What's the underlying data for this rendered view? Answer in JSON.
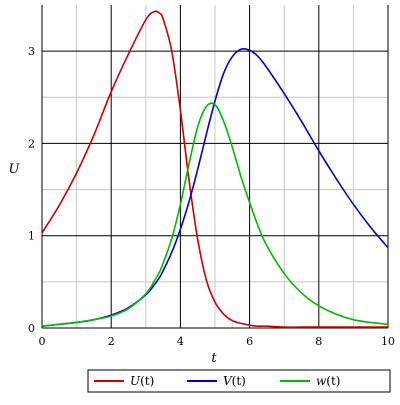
{
  "chart_data": {
    "type": "line",
    "xlabel": "t",
    "ylabel": "U",
    "xlim": [
      0,
      10
    ],
    "ylim": [
      0,
      3.5
    ],
    "grid": true,
    "legend_position": "bottom",
    "xticks": [
      {
        "value": 0,
        "label": "0"
      },
      {
        "value": 2,
        "label": "2"
      },
      {
        "value": 4,
        "label": "4"
      },
      {
        "value": 6,
        "label": "6"
      },
      {
        "value": 8,
        "label": "8"
      },
      {
        "value": 10,
        "label": "10"
      }
    ],
    "yticks": [
      {
        "value": 0,
        "label": "0"
      },
      {
        "value": 1,
        "label": "1"
      },
      {
        "value": 2,
        "label": "2"
      },
      {
        "value": 3,
        "label": "3"
      }
    ],
    "x": [
      0,
      0.5,
      1,
      1.5,
      2,
      2.5,
      3,
      3.25,
      3.4,
      3.5,
      3.75,
      4,
      4.25,
      4.5,
      4.75,
      5,
      5.25,
      5.5,
      5.75,
      6,
      6.25,
      6.5,
      7,
      7.5,
      8,
      8.5,
      9,
      9.5,
      10
    ],
    "series": [
      {
        "name": "U(t)",
        "color": "#cc0000",
        "values": [
          1.03,
          1.33,
          1.68,
          2.09,
          2.56,
          2.97,
          3.34,
          3.43,
          3.41,
          3.35,
          3.0,
          2.36,
          1.6,
          0.96,
          0.52,
          0.28,
          0.15,
          0.08,
          0.05,
          0.03,
          0.02,
          0.02,
          0.01,
          0.01,
          0.01,
          0.01,
          0.01,
          0.01,
          0.01
        ]
      },
      {
        "name": "V(t)",
        "color": "#0000cc",
        "values": [
          0.02,
          0.04,
          0.06,
          0.09,
          0.14,
          0.22,
          0.36,
          0.47,
          0.55,
          0.62,
          0.82,
          1.07,
          1.37,
          1.72,
          2.1,
          2.46,
          2.76,
          2.94,
          3.02,
          3.01,
          2.94,
          2.82,
          2.54,
          2.24,
          1.92,
          1.62,
          1.34,
          1.09,
          0.87
        ]
      },
      {
        "name": "w(t)",
        "color": "#00bb00",
        "values": [
          0.02,
          0.04,
          0.06,
          0.09,
          0.13,
          0.21,
          0.37,
          0.51,
          0.61,
          0.7,
          0.97,
          1.34,
          1.78,
          2.18,
          2.4,
          2.42,
          2.24,
          1.96,
          1.64,
          1.36,
          1.1,
          0.89,
          0.59,
          0.38,
          0.24,
          0.15,
          0.09,
          0.06,
          0.04
        ]
      }
    ]
  },
  "legend": {
    "items": [
      {
        "name_base": "U",
        "name_arg": "(t)",
        "color": "#cc0000"
      },
      {
        "name_base": "V",
        "name_arg": "(t)",
        "color": "#0000cc"
      },
      {
        "name_base": "w",
        "name_arg": "(t)",
        "color": "#00bb00"
      }
    ]
  }
}
